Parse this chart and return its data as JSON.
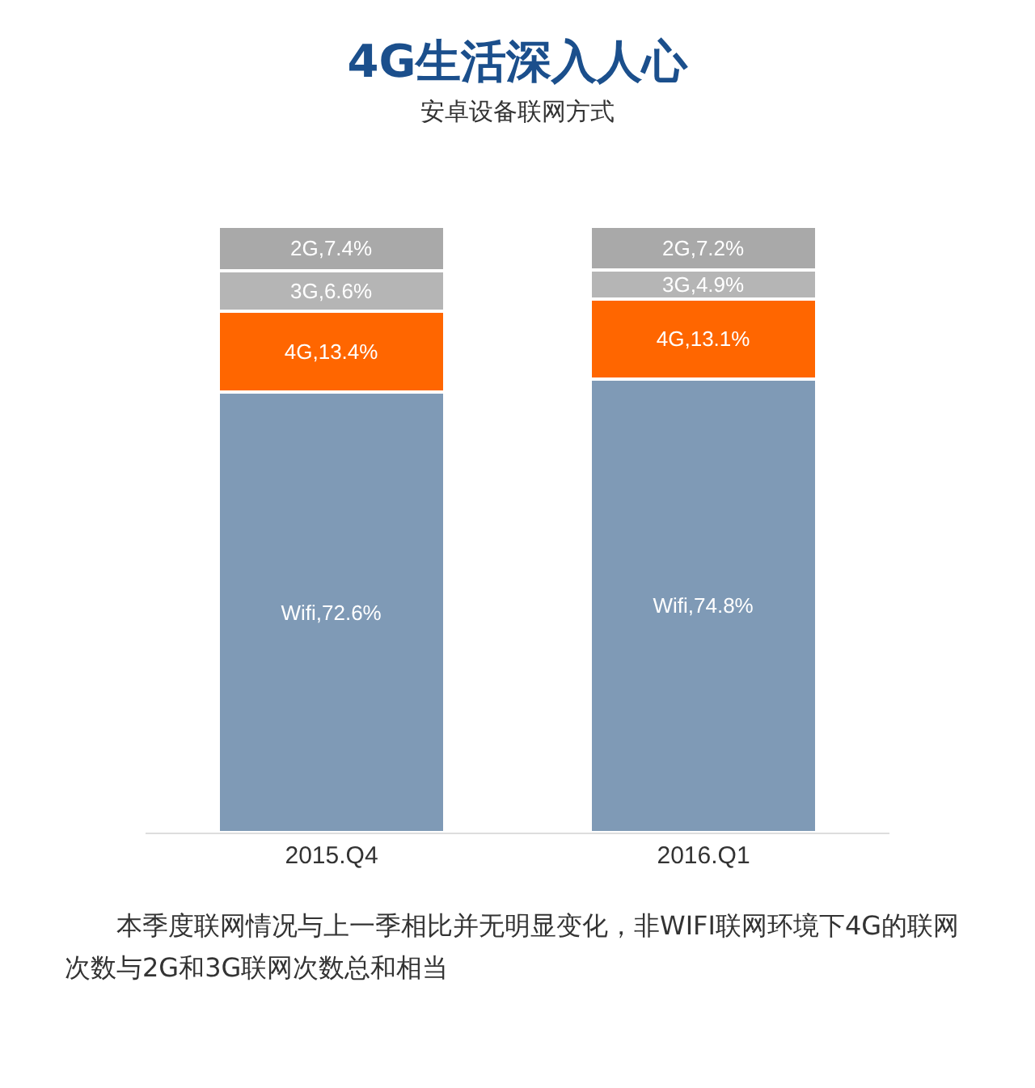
{
  "chart_data": {
    "type": "bar",
    "title": "4G生活深入人心",
    "subtitle": "安卓设备联网方式",
    "categories": [
      "2015.Q4",
      "2016.Q1"
    ],
    "stacked": true,
    "tick_labels": "x",
    "series": [
      {
        "color": "#7f9ab6",
        "values": [
          72.6,
          74.8
        ],
        "value_labels": [
          "Wifi,72.6%",
          "Wifi,74.8%"
        ]
      },
      {
        "color": "#ff6600",
        "values": [
          13.4,
          13.1
        ],
        "value_labels": [
          "4G,13.4%",
          "4G,13.1%"
        ]
      },
      {
        "color": "#b5b5b5",
        "values": [
          6.6,
          4.9
        ],
        "value_labels": [
          "3G,6.6%",
          "3G,4.9%"
        ]
      },
      {
        "color": "#a9a9a9",
        "values": [
          7.4,
          7.2
        ],
        "value_labels": [
          "2G,7.4%",
          "2G,7.2%"
        ]
      }
    ],
    "annotations": [
      "本季度联网情况与上一季相比并无明显变化，非WIFI联网环境下4G的联网次数与2G和3G联网次数总和相当"
    ]
  }
}
